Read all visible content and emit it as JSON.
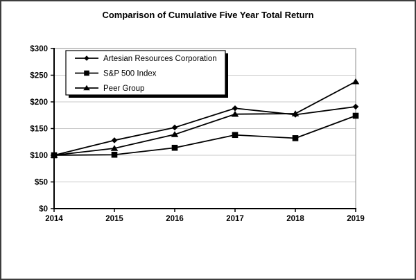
{
  "chart_data": {
    "type": "line",
    "title": "Comparison of Cumulative Five Year Total Return",
    "categories": [
      "2014",
      "2015",
      "2016",
      "2017",
      "2018",
      "2019"
    ],
    "xlabel": "",
    "ylabel": "",
    "ylim": [
      0,
      300
    ],
    "y_tick_step": 50,
    "y_tick_prefix": "$",
    "y_tick_labels": [
      "$0",
      "$50",
      "$100",
      "$150",
      "$200",
      "$250",
      "$300"
    ],
    "grid": true,
    "legend": {
      "position": "top-left-inside",
      "entries": [
        "Artesian Resources Corporation",
        "S&P 500 Index",
        "Peer Group"
      ]
    },
    "series": [
      {
        "name": "Artesian Resources Corporation",
        "marker": "diamond",
        "color": "#000000",
        "values": [
          100,
          128,
          152,
          188,
          176,
          191
        ]
      },
      {
        "name": "S&P 500 Index",
        "marker": "square",
        "color": "#000000",
        "values": [
          100,
          101,
          114,
          138,
          132,
          174
        ]
      },
      {
        "name": "Peer Group",
        "marker": "triangle",
        "color": "#000000",
        "values": [
          100,
          113,
          139,
          177,
          178,
          238
        ]
      }
    ],
    "colors": {
      "line": "#000000",
      "grid": "#c8c8c8",
      "plot_border": "#8c8c8c",
      "background": "#ffffff",
      "text": "#000000",
      "figure_border": "#3d3d3d"
    }
  }
}
